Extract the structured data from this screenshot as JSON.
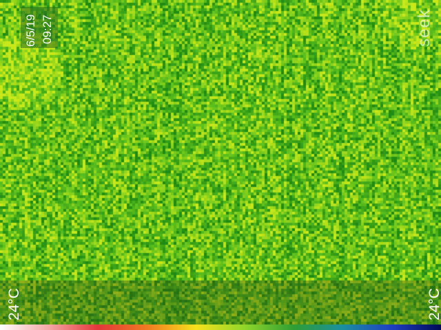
{
  "overlay": {
    "date": "6/5/19",
    "time": "09:27",
    "brand": "seek"
  },
  "scale": {
    "min_label": "24°C",
    "max_label": "24°C",
    "palette": [
      "#ffffff",
      "#f4a6a6",
      "#e4373a",
      "#f07a22",
      "#f6e21c",
      "#8fd62a",
      "#2e9e33",
      "#1b8fa0",
      "#1f3fc2",
      "#000a55"
    ]
  },
  "image": {
    "palette": "green-yellow thermal",
    "base_color": "#5fc21e",
    "dark_color": "#1f8a14",
    "light_color": "#c8e81a"
  }
}
